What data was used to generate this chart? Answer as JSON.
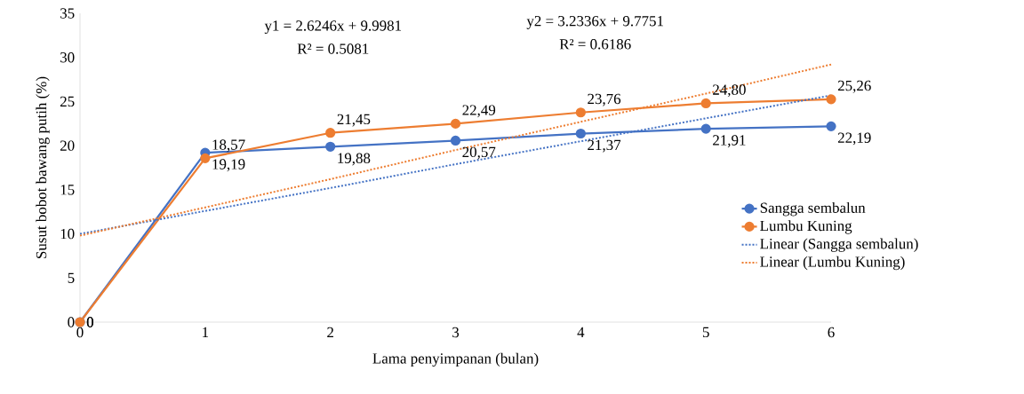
{
  "chart_data": {
    "type": "line",
    "xlabel": "Lama penyimpanan (bulan)",
    "ylabel": "Susut bobot bawang putih (%)",
    "x": [
      0,
      1,
      2,
      3,
      4,
      5,
      6
    ],
    "series": [
      {
        "name": "Sangga sembalun",
        "color": "#4472c4",
        "marker": "circle",
        "line_style": "solid",
        "values": [
          0,
          19.19,
          19.88,
          20.57,
          21.37,
          21.91,
          22.19
        ],
        "value_labels": [
          "0",
          "19,19",
          "19,88",
          "20,57",
          "21,37",
          "21,91",
          "22,19"
        ]
      },
      {
        "name": "Lumbu Kuning",
        "color": "#ed7d31",
        "marker": "circle",
        "line_style": "solid",
        "values": [
          0,
          18.57,
          21.45,
          22.49,
          23.76,
          24.8,
          25.26
        ],
        "value_labels": [
          "0",
          "18,57",
          "21,45",
          "22,49",
          "23,76",
          "24,80",
          "25,26"
        ]
      },
      {
        "name": "Linear (Sangga sembalun)",
        "type": "line",
        "color": "#4472c4",
        "marker": "none",
        "line_style": "dotted",
        "values": [
          10.0,
          12.6,
          15.2,
          17.9,
          20.5,
          23.1,
          25.7
        ]
      },
      {
        "name": "Linear (Lumbu Kuning)",
        "type": "line",
        "color": "#ed7d31",
        "marker": "none",
        "line_style": "dotted",
        "values": [
          9.8,
          13.0,
          16.2,
          19.5,
          22.7,
          25.9,
          29.2
        ]
      }
    ],
    "xlim": [
      0,
      6
    ],
    "xticks": [
      0,
      1,
      2,
      3,
      4,
      5,
      6
    ],
    "ylim": [
      0,
      35
    ],
    "yticks": [
      0,
      5,
      10,
      15,
      20,
      25,
      30,
      35
    ],
    "grid": false,
    "legend": "right",
    "annotations": [
      "y1 = 2.6246x + 9.9981",
      "R² = 0.5081",
      "y2 = 3.2336x + 9.7751",
      "R² = 0.6186"
    ]
  }
}
